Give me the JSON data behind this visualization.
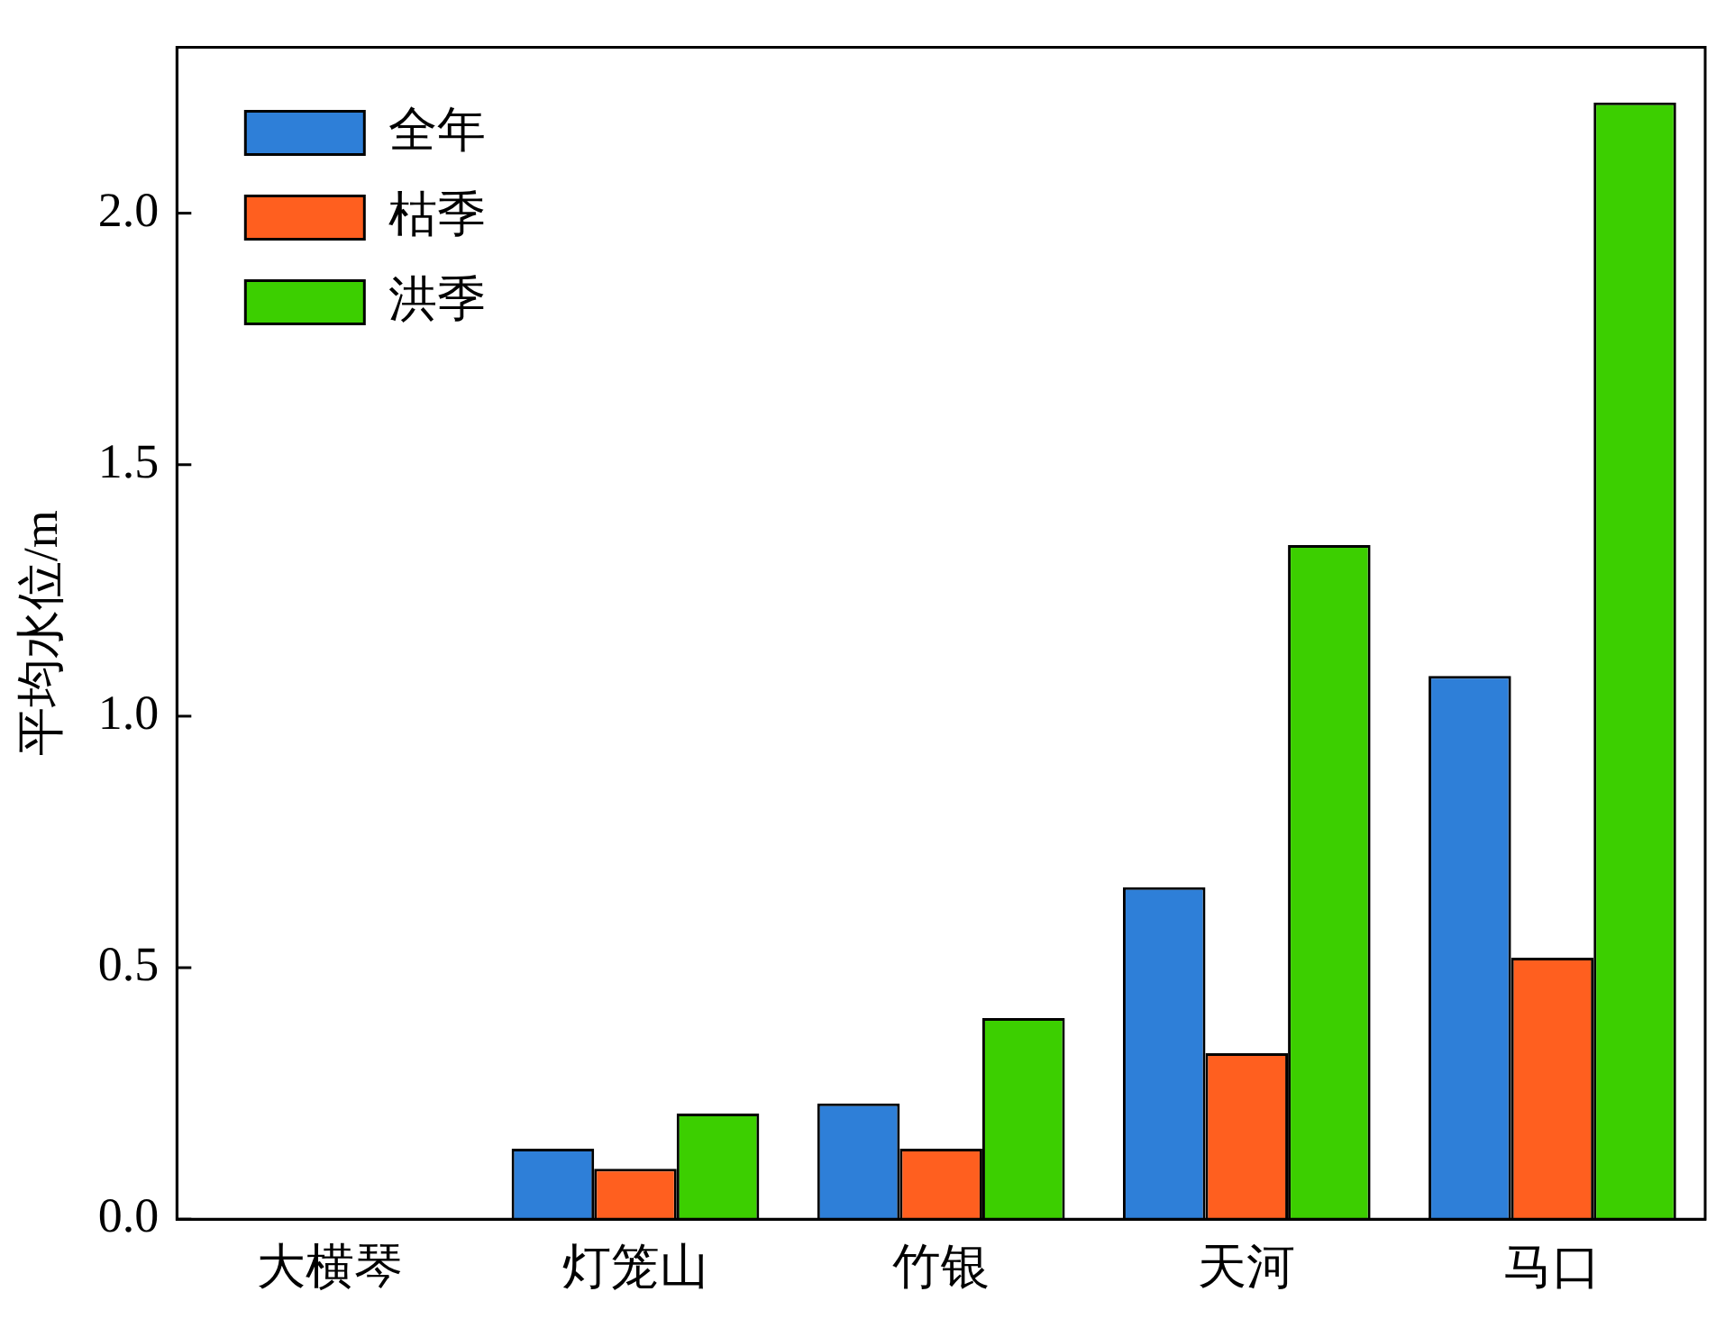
{
  "chart_data": {
    "type": "bar",
    "ylabel": "平均水位/m",
    "categories": [
      "大横琴",
      "灯笼山",
      "竹银",
      "天河",
      "马口"
    ],
    "series": [
      {
        "name": "全年",
        "color": "#2e7fd8",
        "values": [
          0,
          0.14,
          0.23,
          0.66,
          1.08
        ]
      },
      {
        "name": "枯季",
        "color": "#ff5f1f",
        "values": [
          0,
          0.1,
          0.14,
          0.33,
          0.52
        ]
      },
      {
        "name": "洪季",
        "color": "#3ccf00",
        "values": [
          0,
          0.21,
          0.4,
          1.34,
          2.22
        ]
      }
    ],
    "ylim": [
      0,
      2.33
    ],
    "yticks": [
      {
        "value": 0,
        "label": "0.0"
      },
      {
        "value": 0.5,
        "label": "0.5"
      },
      {
        "value": 1,
        "label": "1.0"
      },
      {
        "value": 1.5,
        "label": "1.5"
      },
      {
        "value": 2,
        "label": "2.0"
      }
    ],
    "grid": false,
    "legend": "top left"
  }
}
